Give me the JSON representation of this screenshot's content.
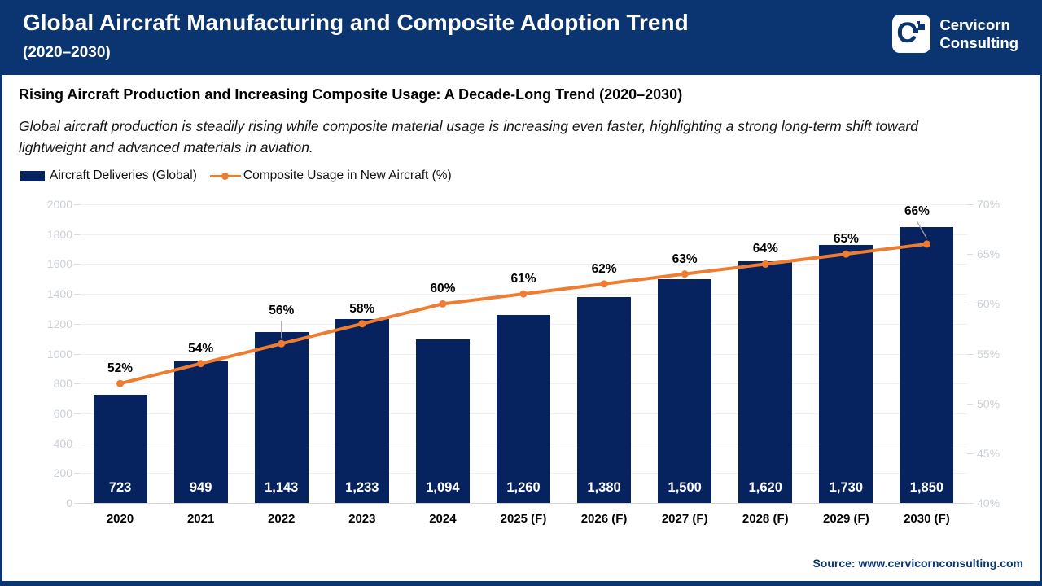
{
  "header": {
    "title": "Global Aircraft Manufacturing and Composite Adoption Trend",
    "subtitle": "(2020–2030)",
    "logo": {
      "line1": "Cervicorn",
      "line2": "Consulting",
      "monogram": "C"
    }
  },
  "content": {
    "heading": "Rising Aircraft Production and Increasing Composite Usage: A Decade-Long Trend (2020–2030)",
    "description_line1": "Global aircraft production is steadily rising while composite material usage is increasing even faster, highlighting a strong long-term shift toward",
    "description_line2": "lightweight and advanced materials in aviation."
  },
  "chart_data": {
    "type": "combo_bar_line",
    "categories": [
      "2020",
      "2021",
      "2022",
      "2023",
      "2024",
      "2025 (F)",
      "2026 (F)",
      "2027 (F)",
      "2028 (F)",
      "2029 (F)",
      "2030 (F)"
    ],
    "series": [
      {
        "name": "Aircraft Deliveries (Global)",
        "type": "bar",
        "axis": "left",
        "values": [
          723,
          949,
          1143,
          1233,
          1094,
          1260,
          1380,
          1500,
          1620,
          1730,
          1850
        ],
        "labels": [
          "723",
          "949",
          "1,143",
          "1,233",
          "1,094",
          "1,260",
          "1,380",
          "1,500",
          "1,620",
          "1,730",
          "1,850"
        ],
        "color": "#07235f"
      },
      {
        "name": "Composite Usage in New Aircraft (%)",
        "type": "line",
        "axis": "right",
        "values": [
          52,
          54,
          56,
          58,
          60,
          61,
          62,
          63,
          64,
          65,
          66
        ],
        "labels": [
          "52%",
          "54%",
          "56%",
          "58%",
          "60%",
          "61%",
          "62%",
          "63%",
          "64%",
          "65%",
          "66%"
        ],
        "color": "#ee7d31",
        "callouts": [
          {
            "index": 2,
            "dx": 0
          },
          {
            "index": 10,
            "dx": -12
          }
        ]
      }
    ],
    "left_axis": {
      "min": 0,
      "max": 2000,
      "step": 200,
      "ticks": [
        "2000",
        "1800",
        "1600",
        "1400",
        "1200",
        "1000",
        "800",
        "600",
        "400",
        "200",
        "0"
      ]
    },
    "right_axis": {
      "min": 40,
      "max": 70,
      "step": 5,
      "ticks": [
        "70%",
        "65%",
        "60%",
        "55%",
        "50%",
        "45%",
        "40%"
      ]
    },
    "grid": true,
    "legend_position": "top-left"
  },
  "footer": {
    "source": "Source: www.cervicornconsulting.com"
  },
  "colors": {
    "navy_header": "#0b3570",
    "navy_bar": "#07235f",
    "orange_line": "#ee7d31",
    "gridline": "#f1f1f1",
    "axis_text": "#cbd0d6",
    "leader_line": "#a6a6a6"
  }
}
